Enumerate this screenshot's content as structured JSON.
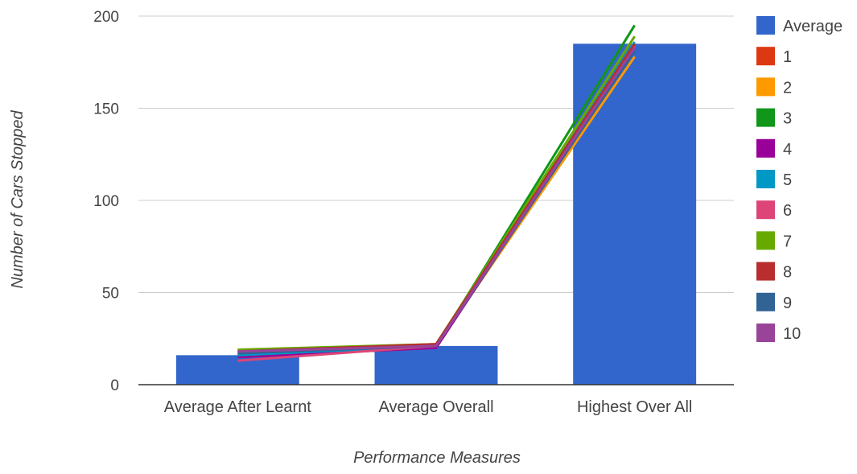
{
  "chart_data": {
    "type": "bar",
    "title": "",
    "xlabel": "Performance Measures",
    "ylabel": "Number of Cars Stopped",
    "categories": [
      "Average After Learnt",
      "Average Overall",
      "Highest Over All"
    ],
    "ylim": [
      0,
      200
    ],
    "yticks": [
      0,
      50,
      100,
      150,
      200
    ],
    "grid": true,
    "legend_position": "right",
    "bar_series": {
      "name": "Average",
      "color": "#3366CC",
      "values": [
        16,
        21,
        185
      ]
    },
    "line_series": [
      {
        "name": "1",
        "color": "#DC3912",
        "values": [
          15,
          20,
          184
        ]
      },
      {
        "name": "2",
        "color": "#FF9900",
        "values": [
          17,
          21,
          178
        ]
      },
      {
        "name": "3",
        "color": "#109618",
        "values": [
          16,
          21,
          195
        ]
      },
      {
        "name": "4",
        "color": "#990099",
        "values": [
          15,
          20,
          183
        ]
      },
      {
        "name": "5",
        "color": "#0099C6",
        "values": [
          16,
          21,
          186
        ]
      },
      {
        "name": "6",
        "color": "#DD4477",
        "values": [
          13,
          21,
          184
        ]
      },
      {
        "name": "7",
        "color": "#66AA00",
        "values": [
          19,
          22,
          189
        ]
      },
      {
        "name": "8",
        "color": "#B82E2E",
        "values": [
          18,
          22,
          185
        ]
      },
      {
        "name": "9",
        "color": "#316395",
        "values": [
          17,
          21,
          181
        ]
      },
      {
        "name": "10",
        "color": "#994499",
        "values": [
          18,
          21,
          183
        ]
      }
    ]
  }
}
